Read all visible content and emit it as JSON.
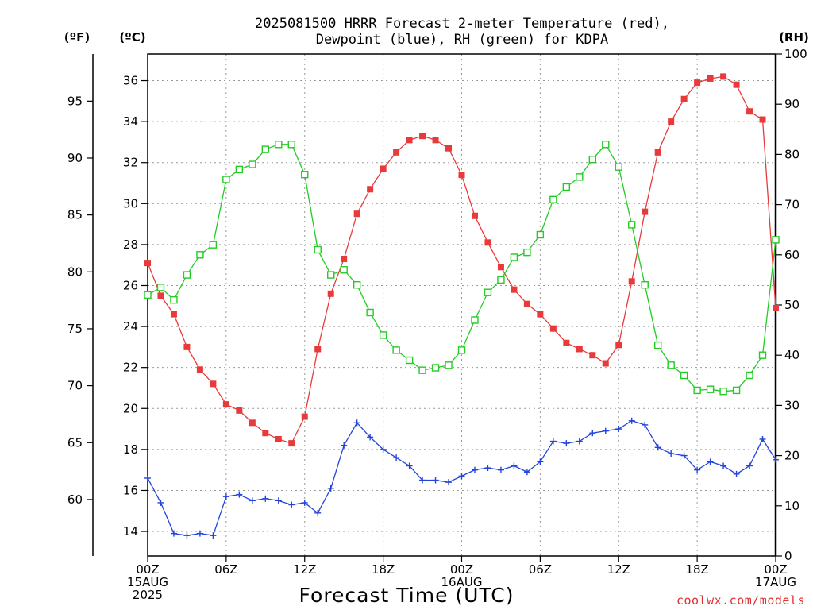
{
  "chart_data": {
    "type": "line",
    "title_lines": [
      "2025081500 HRRR Forecast 2-meter Temperature (red),",
      "Dewpoint (blue), RH (green) for KDPA"
    ],
    "xlabel": "Forecast Time (UTC)",
    "credit": "coolwx.com/models",
    "units": {
      "fahrenheit": "(ºF)",
      "celsius": "(ºC)",
      "rh": "(RH)"
    },
    "x_hours": [
      0,
      1,
      2,
      3,
      4,
      5,
      6,
      7,
      8,
      9,
      10,
      11,
      12,
      13,
      14,
      15,
      16,
      17,
      18,
      19,
      20,
      21,
      22,
      23,
      24,
      25,
      26,
      27,
      28,
      29,
      30,
      31,
      32,
      33,
      34,
      35,
      36,
      37,
      38,
      39,
      40,
      41,
      42,
      43,
      44,
      45,
      46,
      47,
      48
    ],
    "xlim": [
      0,
      48
    ],
    "x_ticks": [
      {
        "hour": 0,
        "lines": [
          "00Z",
          "15AUG",
          "2025"
        ]
      },
      {
        "hour": 6,
        "lines": [
          "06Z"
        ]
      },
      {
        "hour": 12,
        "lines": [
          "12Z"
        ]
      },
      {
        "hour": 18,
        "lines": [
          "18Z"
        ]
      },
      {
        "hour": 24,
        "lines": [
          "00Z",
          "16AUG"
        ]
      },
      {
        "hour": 30,
        "lines": [
          "06Z"
        ]
      },
      {
        "hour": 36,
        "lines": [
          "12Z"
        ]
      },
      {
        "hour": 42,
        "lines": [
          "18Z"
        ]
      },
      {
        "hour": 48,
        "lines": [
          "00Z",
          "17AUG"
        ]
      }
    ],
    "celsius_axis": {
      "range": [
        12.8,
        37.3
      ],
      "ticks": [
        14,
        16,
        18,
        20,
        22,
        24,
        26,
        28,
        30,
        32,
        34,
        36
      ]
    },
    "fahrenheit_axis": {
      "ticks": [
        60,
        65,
        70,
        75,
        80,
        85,
        90,
        95
      ]
    },
    "rh_axis": {
      "range": [
        0,
        100
      ],
      "ticks": [
        0,
        10,
        20,
        30,
        40,
        50,
        60,
        70,
        80,
        90,
        100
      ]
    },
    "grid": true,
    "series": [
      {
        "name": "Temperature",
        "color": "#e83a3a",
        "marker": "filled-square",
        "axis": "celsius",
        "values": [
          27.1,
          25.5,
          24.6,
          23.0,
          21.9,
          21.2,
          20.2,
          19.9,
          19.3,
          18.8,
          18.5,
          18.3,
          19.6,
          22.9,
          25.6,
          27.3,
          29.5,
          30.7,
          31.7,
          32.5,
          33.1,
          33.3,
          33.1,
          32.7,
          31.4,
          29.4,
          28.1,
          26.9,
          25.8,
          25.1,
          24.6,
          23.9,
          23.2,
          22.9,
          22.6,
          22.2,
          23.1,
          26.2,
          29.6,
          32.5,
          34.0,
          35.1,
          35.9,
          36.1,
          36.2,
          35.8,
          34.5,
          34.1,
          24.9
        ]
      },
      {
        "name": "Dewpoint",
        "color": "#2244dd",
        "marker": "plus",
        "axis": "celsius",
        "values": [
          16.6,
          15.4,
          13.9,
          13.8,
          13.9,
          13.8,
          15.7,
          15.8,
          15.5,
          15.6,
          15.5,
          15.3,
          15.4,
          14.9,
          16.1,
          18.2,
          19.3,
          18.6,
          18.0,
          17.6,
          17.2,
          16.5,
          16.5,
          16.4,
          16.7,
          17.0,
          17.1,
          17.0,
          17.2,
          16.9,
          17.4,
          18.4,
          18.3,
          18.4,
          18.8,
          18.9,
          19.0,
          19.4,
          19.2,
          18.1,
          17.8,
          17.7,
          17.0,
          17.4,
          17.2,
          16.8,
          17.2,
          18.5,
          17.5
        ]
      },
      {
        "name": "RH",
        "color": "#22cc22",
        "marker": "open-square",
        "axis": "rh",
        "values": [
          52,
          53.5,
          51,
          56,
          60,
          62,
          75,
          77,
          78,
          81,
          82,
          82,
          76,
          61,
          56,
          57,
          54,
          48.5,
          44,
          41,
          39,
          37,
          37.5,
          38,
          41,
          47,
          52.5,
          55,
          59.5,
          60.5,
          64,
          71,
          73.5,
          75.5,
          79,
          82,
          77.5,
          66,
          54,
          42,
          38,
          36,
          33,
          33.2,
          32.8,
          33,
          36,
          40,
          63
        ]
      }
    ]
  }
}
